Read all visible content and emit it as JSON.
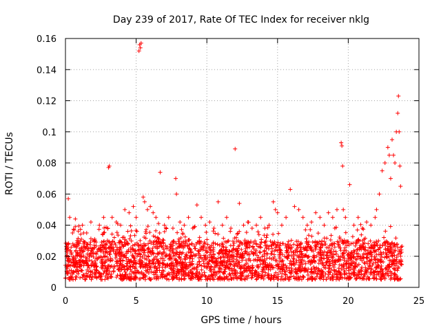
{
  "chart_data": {
    "type": "scatter",
    "title": "Day 239 of 2017, Rate Of TEC Index for receiver nklg",
    "xlabel": "GPS time / hours",
    "ylabel": "ROTI / TECUs",
    "xlim": [
      0,
      25
    ],
    "ylim": [
      0,
      0.16
    ],
    "xticks": [
      0,
      5,
      10,
      15,
      20,
      25
    ],
    "xtick_labels": [
      "0",
      "5",
      "10",
      "15",
      "20",
      "25"
    ],
    "yticks": [
      0,
      0.02,
      0.04,
      0.06,
      0.08,
      0.1,
      0.12,
      0.14,
      0.16
    ],
    "ytick_labels": [
      "0",
      "0.02",
      "0.04",
      "0.06",
      "0.08",
      "0.1",
      "0.12",
      "0.14",
      "0.16"
    ],
    "grid": true,
    "marker": "+",
    "color": "#ff0000",
    "series": [
      {
        "name": "ROTI",
        "x": [
          0.1,
          0.2,
          0.3,
          0.5,
          0.7,
          0.9,
          1.2,
          1.5,
          1.8,
          2.1,
          2.4,
          2.7,
          3.0,
          3.05,
          3.1,
          3.3,
          3.6,
          3.9,
          4.2,
          4.5,
          4.8,
          5.0,
          5.2,
          5.25,
          5.3,
          5.35,
          5.5,
          5.6,
          5.8,
          6.0,
          6.2,
          6.4,
          6.7,
          7.0,
          7.3,
          7.6,
          7.8,
          7.85,
          8.1,
          8.4,
          8.7,
          9.0,
          9.3,
          9.6,
          9.9,
          10.2,
          10.5,
          10.8,
          11.1,
          11.4,
          11.7,
          12.0,
          12.3,
          12.6,
          12.9,
          13.2,
          13.5,
          13.8,
          14.1,
          14.4,
          14.7,
          14.85,
          15.0,
          15.3,
          15.6,
          15.9,
          16.2,
          16.5,
          16.8,
          17.1,
          17.4,
          17.7,
          18.0,
          18.3,
          18.6,
          18.9,
          19.2,
          19.5,
          19.55,
          19.6,
          19.65,
          19.8,
          20.1,
          20.4,
          20.7,
          21.0,
          21.3,
          21.6,
          21.9,
          22.0,
          22.2,
          22.4,
          22.6,
          22.8,
          22.9,
          23.0,
          23.1,
          23.2,
          23.3,
          23.4,
          23.5,
          23.55,
          23.6,
          23.65,
          23.7
        ],
        "y": [
          0.025,
          0.057,
          0.045,
          0.035,
          0.044,
          0.03,
          0.04,
          0.035,
          0.042,
          0.03,
          0.04,
          0.045,
          0.038,
          0.077,
          0.078,
          0.045,
          0.042,
          0.04,
          0.05,
          0.048,
          0.052,
          0.045,
          0.152,
          0.156,
          0.154,
          0.157,
          0.058,
          0.055,
          0.05,
          0.052,
          0.048,
          0.045,
          0.074,
          0.04,
          0.045,
          0.038,
          0.07,
          0.06,
          0.042,
          0.04,
          0.045,
          0.038,
          0.053,
          0.045,
          0.04,
          0.042,
          0.038,
          0.055,
          0.04,
          0.045,
          0.038,
          0.089,
          0.054,
          0.04,
          0.042,
          0.038,
          0.04,
          0.045,
          0.038,
          0.04,
          0.055,
          0.05,
          0.048,
          0.04,
          0.045,
          0.063,
          0.052,
          0.05,
          0.045,
          0.04,
          0.042,
          0.048,
          0.045,
          0.04,
          0.048,
          0.045,
          0.05,
          0.093,
          0.091,
          0.078,
          0.05,
          0.045,
          0.066,
          0.04,
          0.045,
          0.038,
          0.042,
          0.04,
          0.045,
          0.05,
          0.06,
          0.075,
          0.08,
          0.09,
          0.085,
          0.07,
          0.095,
          0.085,
          0.08,
          0.1,
          0.112,
          0.123,
          0.1,
          0.078,
          0.065
        ]
      }
    ],
    "dense_band": {
      "description": "baseline noise",
      "x_range": [
        0,
        23.8
      ],
      "y_range": [
        0.005,
        0.03
      ]
    }
  }
}
